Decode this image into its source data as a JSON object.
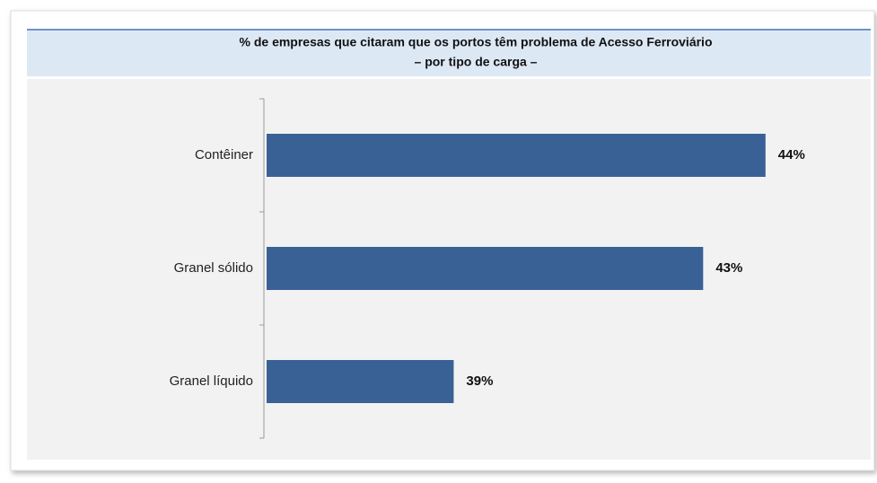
{
  "chart_data": {
    "type": "bar",
    "orientation": "horizontal",
    "title": "% de empresas que citaram que os portos têm problema de Acesso Ferroviário",
    "subtitle": "– por tipo de carga –",
    "categories": [
      "Contêiner",
      "Granel sólido",
      "Granel líquido"
    ],
    "values": [
      44,
      43,
      39
    ],
    "value_labels": [
      "44%",
      "43%",
      "39%"
    ],
    "color": "#3a6196",
    "xlim": [
      36,
      45.5
    ]
  }
}
